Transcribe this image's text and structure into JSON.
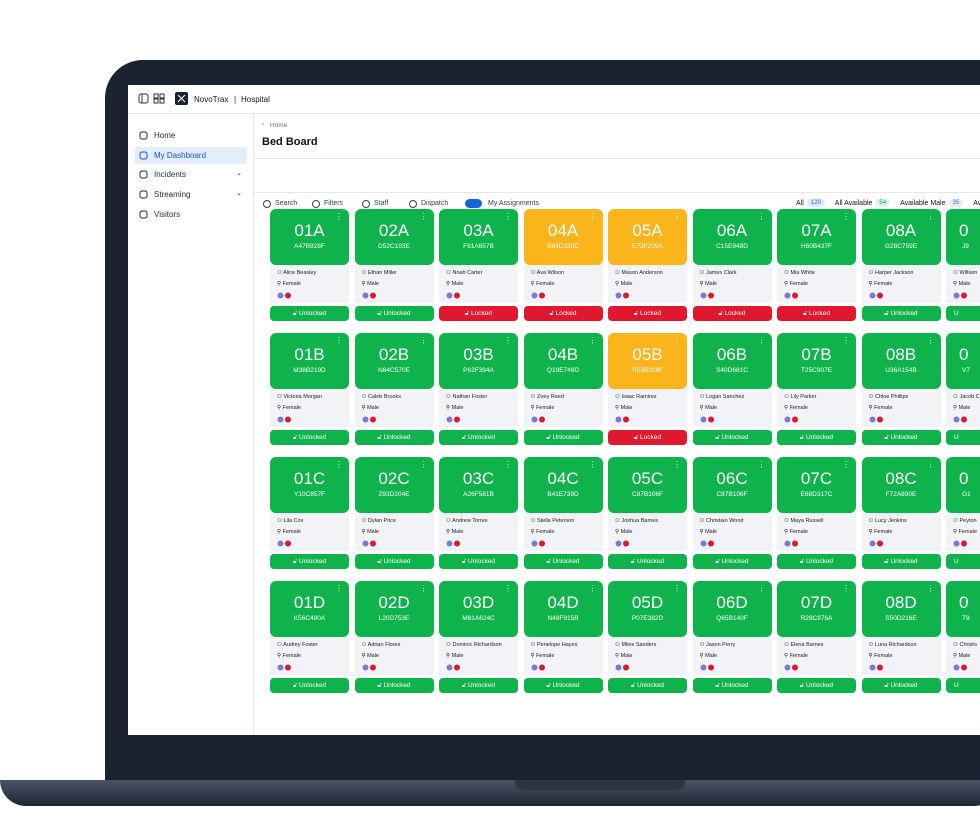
{
  "header": {
    "brand": "NovoTrax",
    "separator": "|",
    "section": "Hospital"
  },
  "sidebar": {
    "items": [
      {
        "label": "Home"
      },
      {
        "label": "My Dashboard",
        "active": true
      },
      {
        "label": "Incidents",
        "expandable": true
      },
      {
        "label": "Streaming",
        "expandable": true
      },
      {
        "label": "Visitors"
      }
    ]
  },
  "breadcrumb": "Home",
  "title": "Bed Board",
  "toolbar": [
    "Search",
    "Filters",
    "Staff",
    "Dispatch",
    "My Assignments"
  ],
  "tabs": [
    {
      "label": "All",
      "count": 120,
      "color": "#1565d8"
    },
    {
      "label": "All Available",
      "count": 54,
      "color": "#16a34a"
    },
    {
      "label": "Available Male",
      "count": 35,
      "color": "#3b6fd8"
    },
    {
      "label": "Av"
    }
  ],
  "beds": [
    [
      {
        "bed": "01A",
        "code": "A47B928F",
        "name": "Alice Beasley",
        "gender": "Female",
        "status": "Unlocked",
        "card_color": "#0fb34c",
        "status_color": "#0fb34c"
      },
      {
        "bed": "02A",
        "code": "D52C103E",
        "name": "Ethan Miller",
        "gender": "Male",
        "status": "Unlocked",
        "card_color": "#0fb34c",
        "status_color": "#0fb34c"
      },
      {
        "bed": "03A",
        "code": "F91A657B",
        "name": "Noah Carter",
        "gender": "Male",
        "status": "Locked",
        "card_color": "#0fb34c",
        "status_color": "#e0182d"
      },
      {
        "bed": "04A",
        "code": "B84D320C",
        "name": "Ava Wilson",
        "gender": "Female",
        "status": "Locked",
        "card_color": "#fbb41a",
        "status_color": "#e0182d"
      },
      {
        "bed": "05A",
        "code": "E73F209A",
        "name": "Mason Anderson",
        "gender": "Male",
        "status": "Locked",
        "card_color": "#fbb41a",
        "status_color": "#e0182d"
      },
      {
        "bed": "06A",
        "code": "C15E948D",
        "name": "James Clark",
        "gender": "Male",
        "status": "Locked",
        "card_color": "#0fb34c",
        "status_color": "#e0182d"
      },
      {
        "bed": "07A",
        "code": "H60B437F",
        "name": "Mia White",
        "gender": "Female",
        "status": "Locked",
        "card_color": "#0fb34c",
        "status_color": "#e0182d"
      },
      {
        "bed": "08A",
        "code": "G28C759E",
        "name": "Harper Jackson",
        "gender": "Female",
        "status": "Unlocked",
        "card_color": "#0fb34c",
        "status_color": "#0fb34c"
      },
      {
        "bed": "0",
        "code": "J9",
        "name": "William",
        "gender": "Male",
        "status": "U",
        "card_color": "#0fb34c",
        "status_color": "#0fb34c"
      }
    ],
    [
      {
        "bed": "01B",
        "code": "M38B219D",
        "name": "Victoria Morgan",
        "gender": "Female",
        "status": "Unlocked",
        "card_color": "#0fb34c",
        "status_color": "#0fb34c"
      },
      {
        "bed": "02B",
        "code": "N84C570E",
        "name": "Caleb Brooks",
        "gender": "Male",
        "status": "Unlocked",
        "card_color": "#0fb34c",
        "status_color": "#0fb34c"
      },
      {
        "bed": "03B",
        "code": "P62F394A",
        "name": "Nathan Foster",
        "gender": "Male",
        "status": "Unlocked",
        "card_color": "#0fb34c",
        "status_color": "#0fb34c"
      },
      {
        "bed": "04B",
        "code": "Q19E746D",
        "name": "Zoey Reed",
        "gender": "Female",
        "status": "Unlocked",
        "card_color": "#0fb34c",
        "status_color": "#0fb34c"
      },
      {
        "bed": "05B",
        "code": "R53B208F",
        "name": "Isaac Ramirez",
        "gender": "Male",
        "status": "Locked",
        "card_color": "#fbb41a",
        "status_color": "#e0182d"
      },
      {
        "bed": "06B",
        "code": "S40D681C",
        "name": "Logan Sanchez",
        "gender": "Male",
        "status": "Unlocked",
        "card_color": "#0fb34c",
        "status_color": "#0fb34c"
      },
      {
        "bed": "07B",
        "code": "T25C907E",
        "name": "Lily Parker",
        "gender": "Female",
        "status": "Unlocked",
        "card_color": "#0fb34c",
        "status_color": "#0fb34c"
      },
      {
        "bed": "08B",
        "code": "U36A154B",
        "name": "Chloe Phillips",
        "gender": "Female",
        "status": "Unlocked",
        "card_color": "#0fb34c",
        "status_color": "#0fb34c"
      },
      {
        "bed": "0",
        "code": "V7",
        "name": "Jacob C",
        "gender": "Male",
        "status": "U",
        "card_color": "#0fb34c",
        "status_color": "#0fb34c"
      }
    ],
    [
      {
        "bed": "01C",
        "code": "Y10C857F",
        "name": "Lila Cox",
        "gender": "Female",
        "status": "Unlocked",
        "card_color": "#0fb34c",
        "status_color": "#0fb34c"
      },
      {
        "bed": "02C",
        "code": "Z93D204E",
        "name": "Dylan Price",
        "gender": "Male",
        "status": "Unlocked",
        "card_color": "#0fb34c",
        "status_color": "#0fb34c"
      },
      {
        "bed": "03C",
        "code": "A26F581B",
        "name": "Andrew Torres",
        "gender": "Male",
        "status": "Unlocked",
        "card_color": "#0fb34c",
        "status_color": "#0fb34c"
      },
      {
        "bed": "04C",
        "code": "B41E739D",
        "name": "Stella Peterson",
        "gender": "Female",
        "status": "Unlocked",
        "card_color": "#0fb34c",
        "status_color": "#0fb34c"
      },
      {
        "bed": "05C",
        "code": "C87B106F",
        "name": "Joshua Barnes",
        "gender": "Male",
        "status": "Unlocked",
        "card_color": "#0fb34c",
        "status_color": "#0fb34c"
      },
      {
        "bed": "06C",
        "code": "C87B106F",
        "name": "Christian Wood",
        "gender": "Male",
        "status": "Unlocked",
        "card_color": "#0fb34c",
        "status_color": "#0fb34c"
      },
      {
        "bed": "07C",
        "code": "E68D317C",
        "name": "Maya Russell",
        "gender": "Female",
        "status": "Unlocked",
        "card_color": "#0fb34c",
        "status_color": "#0fb34c"
      },
      {
        "bed": "08C",
        "code": "F72A890E",
        "name": "Lucy Jenkins",
        "gender": "Female",
        "status": "Unlocked",
        "card_color": "#0fb34c",
        "status_color": "#0fb34c"
      },
      {
        "bed": "0",
        "code": "G1",
        "name": "Peyton",
        "gender": "Female",
        "status": "U",
        "card_color": "#0fb34c",
        "status_color": "#0fb34c"
      }
    ],
    [
      {
        "bed": "01D",
        "code": "K56C490A",
        "name": "Audrey Foster",
        "gender": "Female",
        "status": "Unlocked",
        "card_color": "#0fb34c",
        "status_color": "#0fb34c"
      },
      {
        "bed": "02D",
        "code": "L20D753E",
        "name": "Adrian Flores",
        "gender": "Male",
        "status": "Unlocked",
        "card_color": "#0fb34c",
        "status_color": "#0fb34c"
      },
      {
        "bed": "03D",
        "code": "M81A624C",
        "name": "Dominic Richardson",
        "gender": "Male",
        "status": "Unlocked",
        "card_color": "#0fb34c",
        "status_color": "#0fb34c"
      },
      {
        "bed": "04D",
        "code": "N48F915B",
        "name": "Penelope Hayes",
        "gender": "Female",
        "status": "Unlocked",
        "card_color": "#0fb34c",
        "status_color": "#0fb34c"
      },
      {
        "bed": "05D",
        "code": "P07E382D",
        "name": "Miles Sanders",
        "gender": "Male",
        "status": "Unlocked",
        "card_color": "#0fb34c",
        "status_color": "#0fb34c"
      },
      {
        "bed": "06D",
        "code": "Q65B140F",
        "name": "Jason Perry",
        "gender": "Male",
        "status": "Unlocked",
        "card_color": "#0fb34c",
        "status_color": "#0fb34c"
      },
      {
        "bed": "07D",
        "code": "R29C876A",
        "name": "Elena Barnes",
        "gender": "Female",
        "status": "Unlocked",
        "card_color": "#0fb34c",
        "status_color": "#0fb34c"
      },
      {
        "bed": "08D",
        "code": "S50D216E",
        "name": "Luna Richardson",
        "gender": "Female",
        "status": "Unlocked",
        "card_color": "#0fb34c",
        "status_color": "#0fb34c"
      },
      {
        "bed": "0",
        "code": "T9",
        "name": "Christo",
        "gender": "Male",
        "status": "U",
        "card_color": "#0fb34c",
        "status_color": "#0fb34c"
      }
    ]
  ]
}
